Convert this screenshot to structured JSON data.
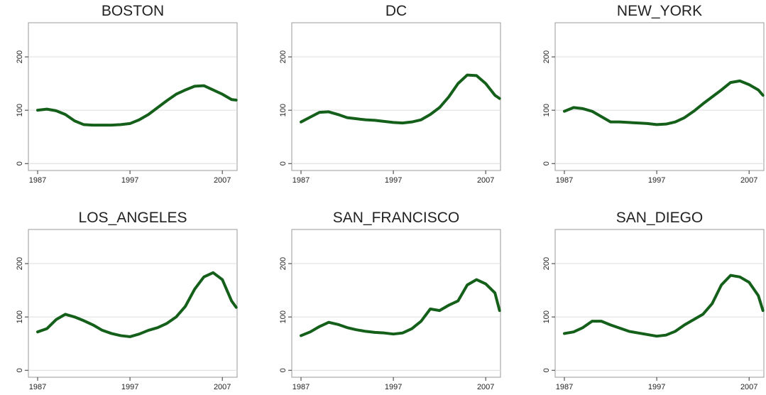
{
  "chart_data": [
    {
      "type": "line",
      "title": "BOSTON",
      "x": [
        1987,
        1988,
        1989,
        1990,
        1991,
        1992,
        1993,
        1994,
        1995,
        1996,
        1997,
        1998,
        1999,
        2000,
        2001,
        2002,
        2003,
        2004,
        2005,
        2006,
        2007,
        2008,
        2008.5
      ],
      "series": [
        {
          "name": "BOSTON",
          "color": "#14601a",
          "values": [
            100,
            102,
            99,
            92,
            80,
            73,
            72,
            72,
            72,
            73,
            75,
            82,
            92,
            105,
            118,
            130,
            138,
            145,
            146,
            138,
            130,
            120,
            119
          ]
        }
      ],
      "xlim": [
        1986,
        2008.6
      ],
      "xticks": [
        1987,
        1997,
        2007
      ],
      "ylim": [
        -13,
        264
      ],
      "yticks": [
        0,
        100,
        200
      ],
      "grid": true
    },
    {
      "type": "line",
      "title": "DC",
      "x": [
        1987,
        1988,
        1989,
        1990,
        1991,
        1992,
        1993,
        1994,
        1995,
        1996,
        1997,
        1998,
        1999,
        2000,
        2001,
        2002,
        2003,
        2004,
        2005,
        2006,
        2007,
        2008,
        2008.5
      ],
      "series": [
        {
          "name": "DC",
          "color": "#14601a",
          "values": [
            78,
            87,
            96,
            97,
            92,
            86,
            84,
            82,
            81,
            79,
            77,
            76,
            78,
            82,
            92,
            105,
            125,
            150,
            166,
            165,
            150,
            128,
            122
          ]
        }
      ],
      "xlim": [
        1986,
        2008.6
      ],
      "xticks": [
        1987,
        1997,
        2007
      ],
      "ylim": [
        -13,
        264
      ],
      "yticks": [
        0,
        100,
        200
      ],
      "grid": true
    },
    {
      "type": "line",
      "title": "NEW_YORK",
      "x": [
        1987,
        1988,
        1989,
        1990,
        1991,
        1992,
        1993,
        1994,
        1995,
        1996,
        1997,
        1998,
        1999,
        2000,
        2001,
        2002,
        2003,
        2004,
        2005,
        2006,
        2007,
        2008,
        2008.5
      ],
      "series": [
        {
          "name": "NEW_YORK",
          "color": "#14601a",
          "values": [
            98,
            105,
            103,
            98,
            88,
            78,
            78,
            77,
            76,
            75,
            73,
            74,
            78,
            86,
            98,
            112,
            125,
            138,
            152,
            155,
            148,
            138,
            128
          ]
        }
      ],
      "xlim": [
        1986,
        2008.6
      ],
      "xticks": [
        1987,
        1997,
        2007
      ],
      "ylim": [
        -13,
        264
      ],
      "yticks": [
        0,
        100,
        200
      ],
      "grid": true
    },
    {
      "type": "line",
      "title": "LOS_ANGELES",
      "x": [
        1987,
        1988,
        1989,
        1990,
        1991,
        1992,
        1993,
        1994,
        1995,
        1996,
        1997,
        1998,
        1999,
        2000,
        2001,
        2002,
        2003,
        2004,
        2005,
        2006,
        2007,
        2008,
        2008.5
      ],
      "series": [
        {
          "name": "LOS_ANGELES",
          "color": "#14601a",
          "values": [
            72,
            78,
            95,
            105,
            100,
            93,
            85,
            75,
            69,
            65,
            63,
            68,
            75,
            80,
            88,
            100,
            120,
            152,
            175,
            183,
            170,
            130,
            118
          ]
        }
      ],
      "xlim": [
        1986,
        2008.6
      ],
      "xticks": [
        1987,
        1997,
        2007
      ],
      "ylim": [
        -13,
        264
      ],
      "yticks": [
        0,
        100,
        200
      ],
      "grid": true
    },
    {
      "type": "line",
      "title": "SAN_FRANCISCO",
      "x": [
        1987,
        1988,
        1989,
        1990,
        1991,
        1992,
        1993,
        1994,
        1995,
        1996,
        1997,
        1998,
        1999,
        2000,
        2001,
        2002,
        2003,
        2004,
        2005,
        2006,
        2007,
        2008,
        2008.5
      ],
      "series": [
        {
          "name": "SAN_FRANCISCO",
          "color": "#14601a",
          "values": [
            65,
            72,
            82,
            90,
            86,
            80,
            76,
            73,
            71,
            70,
            68,
            70,
            78,
            92,
            115,
            112,
            122,
            130,
            160,
            170,
            162,
            145,
            112
          ]
        }
      ],
      "xlim": [
        1986,
        2008.6
      ],
      "xticks": [
        1987,
        1997,
        2007
      ],
      "ylim": [
        -13,
        264
      ],
      "yticks": [
        0,
        100,
        200
      ],
      "grid": true
    },
    {
      "type": "line",
      "title": "SAN_DIEGO",
      "x": [
        1987,
        1988,
        1989,
        1990,
        1991,
        1992,
        1993,
        1994,
        1995,
        1996,
        1997,
        1998,
        1999,
        2000,
        2001,
        2002,
        2003,
        2004,
        2005,
        2006,
        2007,
        2008,
        2008.5
      ],
      "series": [
        {
          "name": "SAN_DIEGO",
          "color": "#14601a",
          "values": [
            69,
            72,
            80,
            92,
            92,
            85,
            79,
            73,
            70,
            67,
            64,
            66,
            73,
            85,
            95,
            105,
            125,
            160,
            178,
            175,
            165,
            140,
            112
          ]
        }
      ],
      "xlim": [
        1986,
        2008.6
      ],
      "xticks": [
        1987,
        1997,
        2007
      ],
      "ylim": [
        -13,
        264
      ],
      "yticks": [
        0,
        100,
        200
      ],
      "grid": true
    }
  ]
}
